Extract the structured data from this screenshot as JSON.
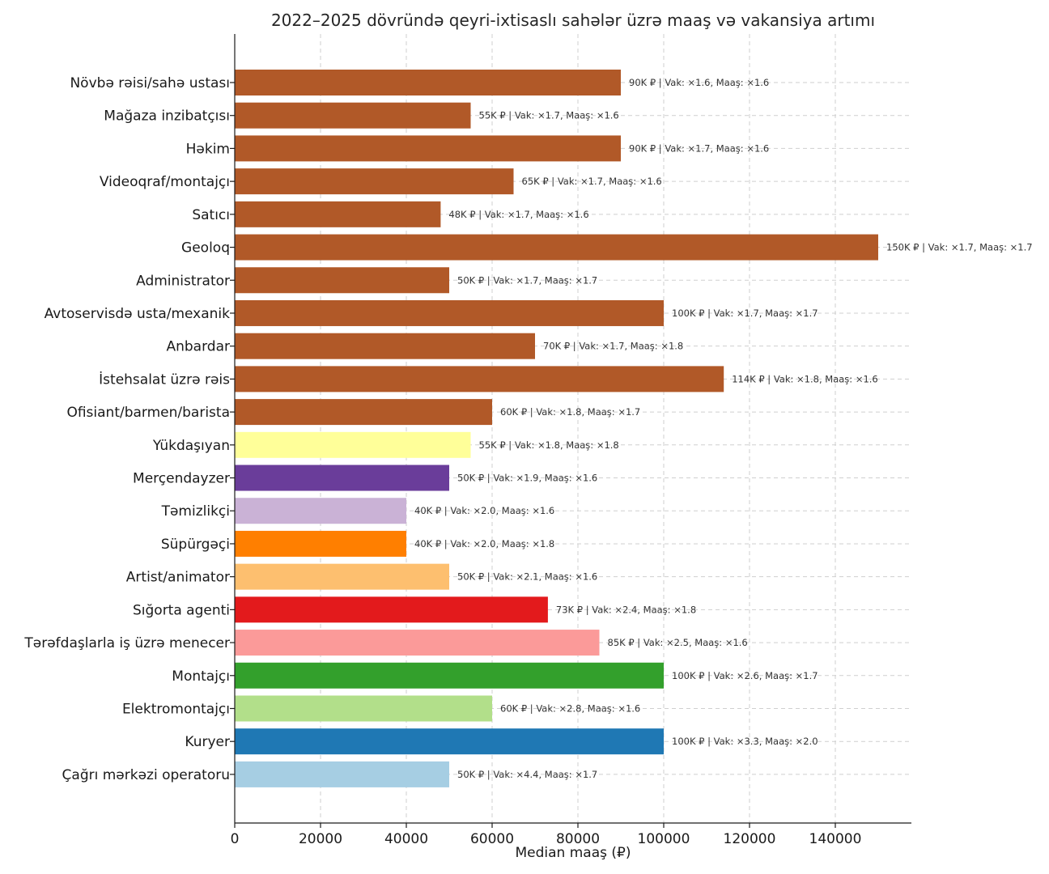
{
  "chart_data": {
    "type": "bar",
    "orientation": "horizontal",
    "title": "2022–2025 dövründə qeyri-ixtisaslı sahələr üzrə maaş və vakansiya artımı",
    "xlabel": "Median maaş (₽)",
    "ylabel": "",
    "xlim": [
      0,
      157500
    ],
    "xticks": [
      0,
      20000,
      40000,
      60000,
      80000,
      100000,
      120000,
      140000
    ],
    "xtick_labels": [
      "0",
      "20000",
      "40000",
      "60000",
      "80000",
      "100000",
      "120000",
      "140000"
    ],
    "grid": true,
    "bars": [
      {
        "category": "Növbə rəisi/sahə ustası",
        "value": 90000,
        "label": "90K ₽ | Vak: ×1.6, Maaş: ×1.6",
        "color": "#b15928"
      },
      {
        "category": "Mağaza inzibatçısı",
        "value": 55000,
        "label": "55K ₽ | Vak: ×1.7, Maaş: ×1.6",
        "color": "#b15928"
      },
      {
        "category": "Həkim",
        "value": 90000,
        "label": "90K ₽ | Vak: ×1.7, Maaş: ×1.6",
        "color": "#b15928"
      },
      {
        "category": "Videoqraf/montajçı",
        "value": 65000,
        "label": "65K ₽ | Vak: ×1.7, Maaş: ×1.6",
        "color": "#b15928"
      },
      {
        "category": "Satıcı",
        "value": 48000,
        "label": "48K ₽ | Vak: ×1.7, Maaş: ×1.6",
        "color": "#b15928"
      },
      {
        "category": "Geoloq",
        "value": 150000,
        "label": "150K ₽ | Vak: ×1.7, Maaş: ×1.7",
        "color": "#b15928"
      },
      {
        "category": "Administrator",
        "value": 50000,
        "label": "50K ₽ | Vak: ×1.7, Maaş: ×1.7",
        "color": "#b15928"
      },
      {
        "category": "Avtoservisdə usta/mexanik",
        "value": 100000,
        "label": "100K ₽ | Vak: ×1.7, Maaş: ×1.7",
        "color": "#b15928"
      },
      {
        "category": "Anbardar",
        "value": 70000,
        "label": "70K ₽ | Vak: ×1.7, Maaş: ×1.8",
        "color": "#b15928"
      },
      {
        "category": "İstehsalat üzrə rəis",
        "value": 114000,
        "label": "114K ₽ | Vak: ×1.8, Maaş: ×1.6",
        "color": "#b15928"
      },
      {
        "category": "Ofisiant/barmen/barista",
        "value": 60000,
        "label": "60K ₽ | Vak: ×1.8, Maaş: ×1.7",
        "color": "#b15928"
      },
      {
        "category": "Yükdaşıyan",
        "value": 55000,
        "label": "55K ₽ | Vak: ×1.8, Maaş: ×1.8",
        "color": "#ffff99"
      },
      {
        "category": "Merçendayzer",
        "value": 50000,
        "label": "50K ₽ | Vak: ×1.9, Maaş: ×1.6",
        "color": "#6a3d9a"
      },
      {
        "category": "Təmizlikçi",
        "value": 40000,
        "label": "40K ₽ | Vak: ×2.0, Maaş: ×1.6",
        "color": "#cab2d6"
      },
      {
        "category": "Süpürgəçi",
        "value": 40000,
        "label": "40K ₽ | Vak: ×2.0, Maaş: ×1.8",
        "color": "#ff7f00"
      },
      {
        "category": "Artist/animator",
        "value": 50000,
        "label": "50K ₽ | Vak: ×2.1, Maaş: ×1.6",
        "color": "#fdbf6f"
      },
      {
        "category": "Sığorta agenti",
        "value": 73000,
        "label": "73K ₽ | Vak: ×2.4, Maaş: ×1.8",
        "color": "#e31a1c"
      },
      {
        "category": "Tərəfdaşlarla iş üzrə menecer",
        "value": 85000,
        "label": "85K ₽ | Vak: ×2.5, Maaş: ×1.6",
        "color": "#fb9a99"
      },
      {
        "category": "Montajçı",
        "value": 100000,
        "label": "100K ₽ | Vak: ×2.6, Maaş: ×1.7",
        "color": "#33a02c"
      },
      {
        "category": "Elektromontajçı",
        "value": 60000,
        "label": "60K ₽ | Vak: ×2.8, Maaş: ×1.6",
        "color": "#b2df8a"
      },
      {
        "category": "Kuryer",
        "value": 100000,
        "label": "100K ₽ | Vak: ×3.3, Maaş: ×2.0",
        "color": "#1f78b4"
      },
      {
        "category": "Çağrı mərkəzi operatoru",
        "value": 50000,
        "label": "50K ₽ | Vak: ×4.4, Maaş: ×1.7",
        "color": "#a6cee3"
      }
    ]
  }
}
